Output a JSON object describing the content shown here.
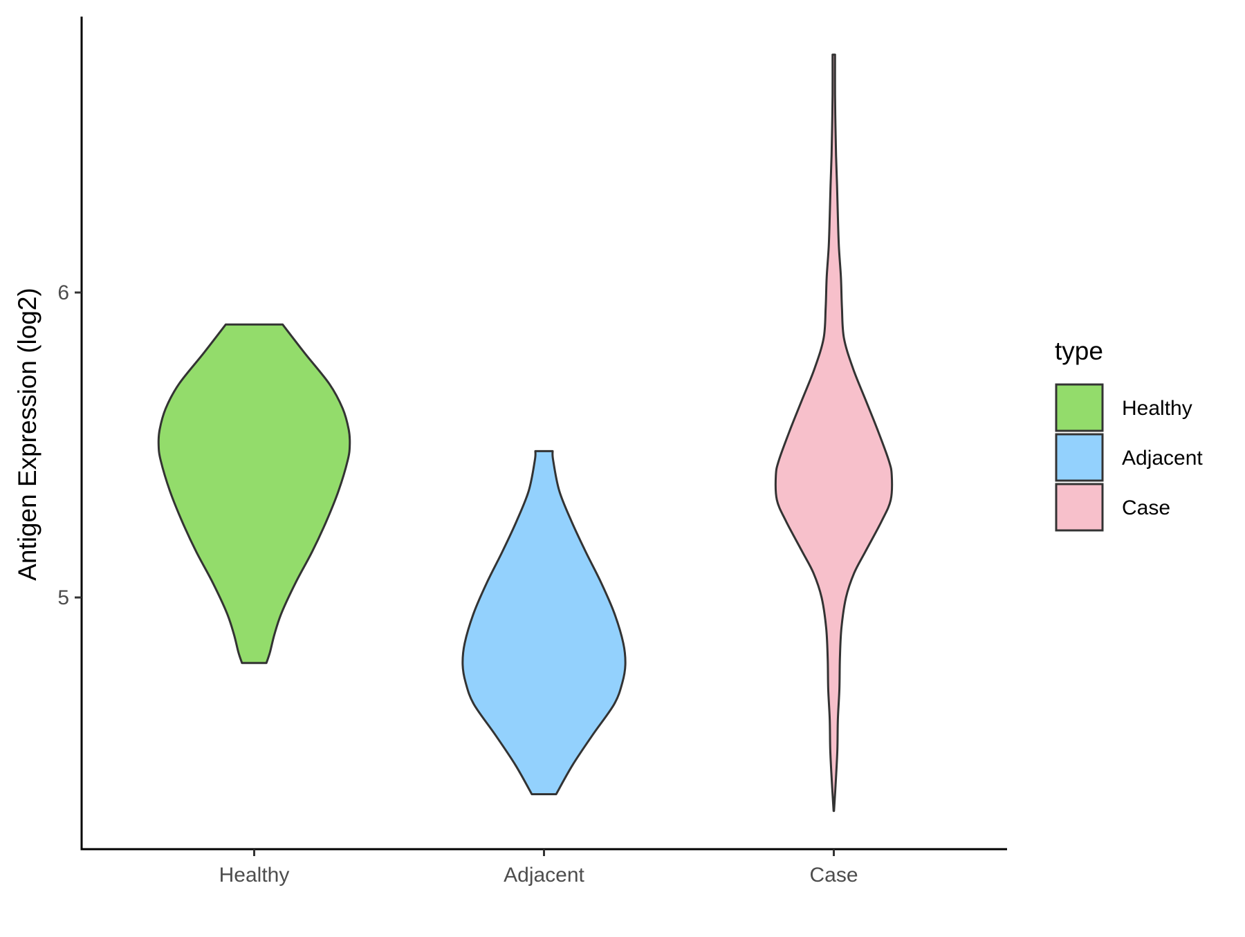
{
  "chart_data": {
    "type": "violin",
    "title": "",
    "xlabel": "",
    "ylabel": "Antigen Expression (log2)",
    "categories": [
      "Healthy",
      "Adjacent",
      "Case"
    ],
    "y_ticks": [
      5,
      6
    ],
    "ylim": [
      4.18,
      6.92
    ],
    "grid": false,
    "legend": {
      "title": "type",
      "placement": "right",
      "entries": [
        {
          "label": "Healthy",
          "color": "#93dc6b"
        },
        {
          "label": "Adjacent",
          "color": "#93d1fd"
        },
        {
          "label": "Case",
          "color": "#f7c0cb"
        }
      ]
    },
    "outline_color": "#333333",
    "series": [
      {
        "category": "Healthy",
        "color": "#93dc6b",
        "min": 4.785,
        "max": 5.895,
        "profile": [
          [
            4.785,
            0.12
          ],
          [
            4.82,
            0.155
          ],
          [
            4.88,
            0.2
          ],
          [
            4.95,
            0.27
          ],
          [
            5.05,
            0.41
          ],
          [
            5.15,
            0.57
          ],
          [
            5.25,
            0.71
          ],
          [
            5.35,
            0.83
          ],
          [
            5.45,
            0.92
          ],
          [
            5.5,
            0.94
          ],
          [
            5.55,
            0.93
          ],
          [
            5.62,
            0.87
          ],
          [
            5.7,
            0.74
          ],
          [
            5.8,
            0.5
          ],
          [
            5.895,
            0.28
          ]
        ]
      },
      {
        "category": "Adjacent",
        "color": "#93d1fd",
        "min": 4.355,
        "max": 5.48,
        "profile": [
          [
            4.355,
            0.12
          ],
          [
            4.45,
            0.28
          ],
          [
            4.55,
            0.48
          ],
          [
            4.65,
            0.69
          ],
          [
            4.72,
            0.77
          ],
          [
            4.78,
            0.8
          ],
          [
            4.85,
            0.78
          ],
          [
            4.95,
            0.69
          ],
          [
            5.05,
            0.56
          ],
          [
            5.15,
            0.41
          ],
          [
            5.25,
            0.27
          ],
          [
            5.35,
            0.15
          ],
          [
            5.45,
            0.09
          ],
          [
            5.48,
            0.085
          ]
        ]
      },
      {
        "category": "Case",
        "color": "#f7c0cb",
        "min": 4.3,
        "max": 6.78,
        "profile": [
          [
            4.3,
            0.002
          ],
          [
            4.4,
            0.02
          ],
          [
            4.5,
            0.035
          ],
          [
            4.6,
            0.04
          ],
          [
            4.7,
            0.055
          ],
          [
            4.8,
            0.06
          ],
          [
            4.9,
            0.075
          ],
          [
            5.0,
            0.12
          ],
          [
            5.08,
            0.2
          ],
          [
            5.15,
            0.31
          ],
          [
            5.25,
            0.47
          ],
          [
            5.32,
            0.56
          ],
          [
            5.4,
            0.57
          ],
          [
            5.45,
            0.54
          ],
          [
            5.55,
            0.43
          ],
          [
            5.65,
            0.31
          ],
          [
            5.75,
            0.19
          ],
          [
            5.85,
            0.1
          ],
          [
            5.95,
            0.08
          ],
          [
            6.05,
            0.07
          ],
          [
            6.15,
            0.05
          ],
          [
            6.25,
            0.04
          ],
          [
            6.35,
            0.032
          ],
          [
            6.45,
            0.022
          ],
          [
            6.55,
            0.016
          ],
          [
            6.65,
            0.012
          ],
          [
            6.78,
            0.012
          ]
        ]
      }
    ]
  }
}
